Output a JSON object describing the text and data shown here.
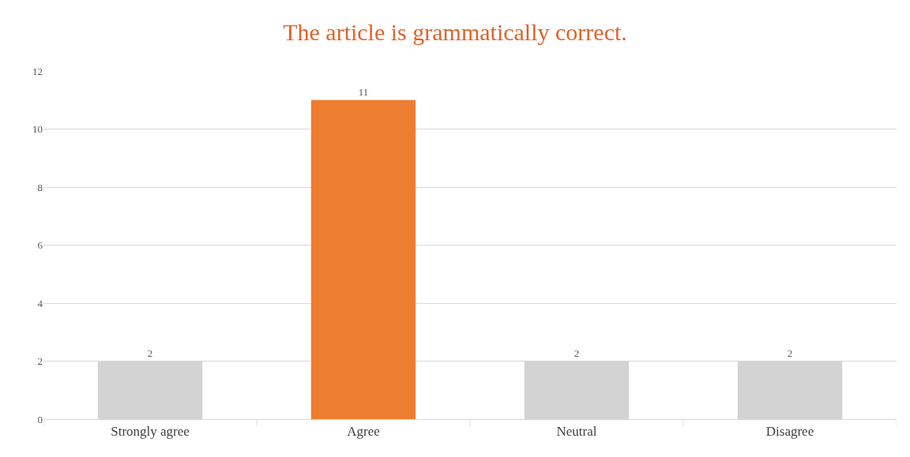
{
  "chart_data": {
    "type": "bar",
    "title": "The article is grammatically correct.",
    "categories": [
      "Strongly agree",
      "Agree",
      "Neutral",
      "Disagree"
    ],
    "values": [
      2,
      11,
      2,
      2
    ],
    "colors": [
      "#d3d3d3",
      "#ed7d31",
      "#d3d3d3",
      "#d3d3d3"
    ],
    "ylim": [
      0,
      12
    ],
    "yticks": [
      0,
      2,
      4,
      6,
      8,
      10,
      12
    ],
    "grid": "y",
    "data_labels": true
  }
}
